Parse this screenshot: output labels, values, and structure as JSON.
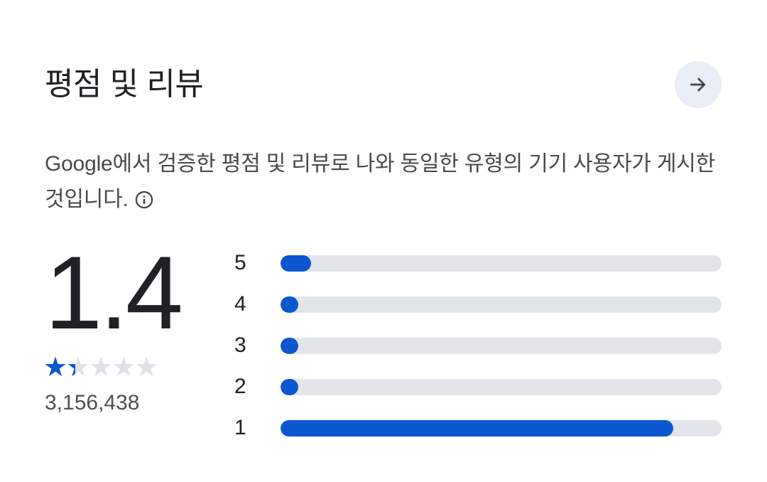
{
  "section": {
    "title": "평점 및 리뷰"
  },
  "header": {
    "see_more_icon": "arrow-forward-icon"
  },
  "description": {
    "text": "Google에서 검증한 평점 및 리뷰로 나와 동일한 유형의 기기 사용자가 게시한 것입니다.",
    "info_icon": "info-icon"
  },
  "summary": {
    "average_rating": "1.4",
    "stars_value": 1.4,
    "stars_max": 5,
    "stars_glyphs": "★★★★★",
    "ratings_count": "3,156,438"
  },
  "chart_data": {
    "type": "bar",
    "orientation": "horizontal",
    "categories": [
      "5",
      "4",
      "3",
      "2",
      "1"
    ],
    "values": [
      7,
      4,
      4,
      4,
      89
    ],
    "unit": "percent of total ratings (estimated from bar lengths)",
    "xlim": [
      0,
      100
    ],
    "bar_color": "#0b57d0",
    "track_color": "#e2e5ea"
  },
  "colors": {
    "accent_blue": "#0b57d0",
    "bar_track": "#e2e5ea",
    "star_empty": "#dfe3e9",
    "button_background": "#e9edf5",
    "icon_gray": "#3f4346",
    "title_text": "#1f2124",
    "body_text": "#474a4d",
    "count_text": "#4d5054"
  }
}
